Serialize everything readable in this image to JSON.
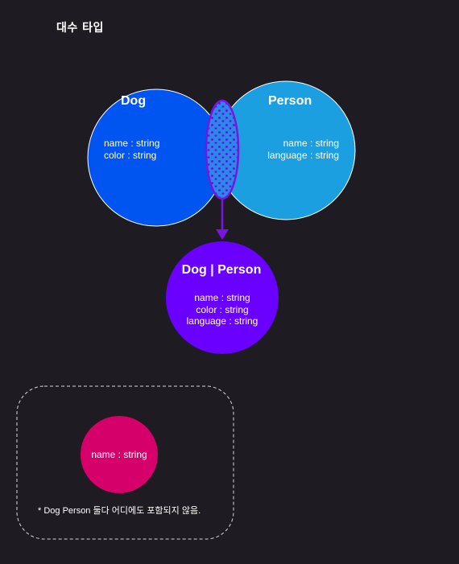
{
  "page_title": "대수 타입",
  "dog": {
    "title": "Dog",
    "fields": [
      "name : string",
      "color : string"
    ],
    "color": "#0055f0"
  },
  "person": {
    "title": "Person",
    "fields": [
      "name : string",
      "language : string"
    ],
    "color": "#1c9fe1"
  },
  "union": {
    "title": "Dog | Person",
    "fields": [
      "name : string",
      "color : string",
      "language : string"
    ],
    "color": "#6a00ff"
  },
  "intersection_color": "#6f0fd6",
  "intersection_dots_color": "#5a0ad0",
  "excluded": {
    "field": "name : string",
    "color": "#d6006b",
    "note": "* Dog Person 둘다 어디에도 포함되지 않음."
  }
}
